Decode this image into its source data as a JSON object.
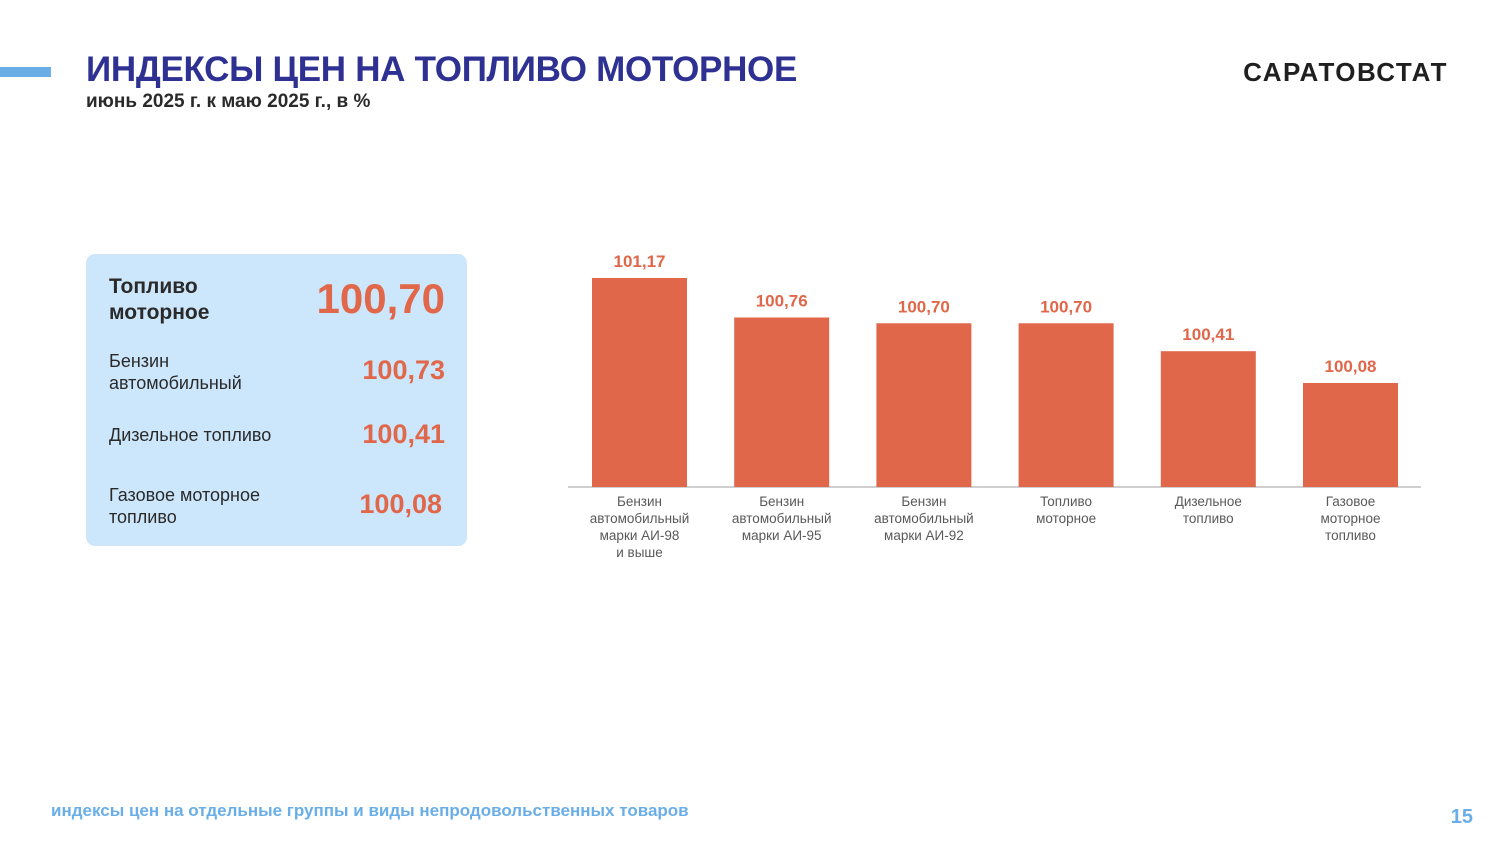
{
  "header": {
    "title": "ИНДЕКСЫ ЦЕН НА ТОПЛИВО МОТОРНОЕ",
    "subtitle": "июнь 2025 г. к маю 2025 г., в %",
    "brand": "САРАТОВСТАТ"
  },
  "summary_panel": {
    "main": {
      "label": "Топливо моторное",
      "value": "100,70"
    },
    "items": [
      {
        "label": "Бензин автомобильный",
        "value": "100,73"
      },
      {
        "label": "Дизельное топливо",
        "value": "100,41"
      },
      {
        "label": "Газовое моторное топливо",
        "value": "100,08"
      }
    ]
  },
  "chart_data": {
    "type": "bar",
    "categories": [
      [
        "Бензин",
        "автомобильный",
        "марки АИ-98",
        "и выше"
      ],
      [
        "Бензин",
        "автомобильный",
        "марки АИ-95"
      ],
      [
        "Бензин",
        "автомобильный",
        "марки АИ-92"
      ],
      [
        "Топливо",
        "моторное"
      ],
      [
        "Дизельное",
        "топливо"
      ],
      [
        "Газовое",
        "моторное",
        "топливо"
      ]
    ],
    "values": [
      101.17,
      100.76,
      100.7,
      100.7,
      100.41,
      100.08
    ],
    "data_labels": [
      "101,17",
      "100,76",
      "100,70",
      "100,70",
      "100,41",
      "100,08"
    ],
    "bar_color": "#e0674a",
    "label_color": "#e0674a",
    "grid": false,
    "legend": "none"
  },
  "footer": {
    "text": "индексы цен на отдельные группы и виды непродовольственных товаров",
    "page_number": "15"
  }
}
